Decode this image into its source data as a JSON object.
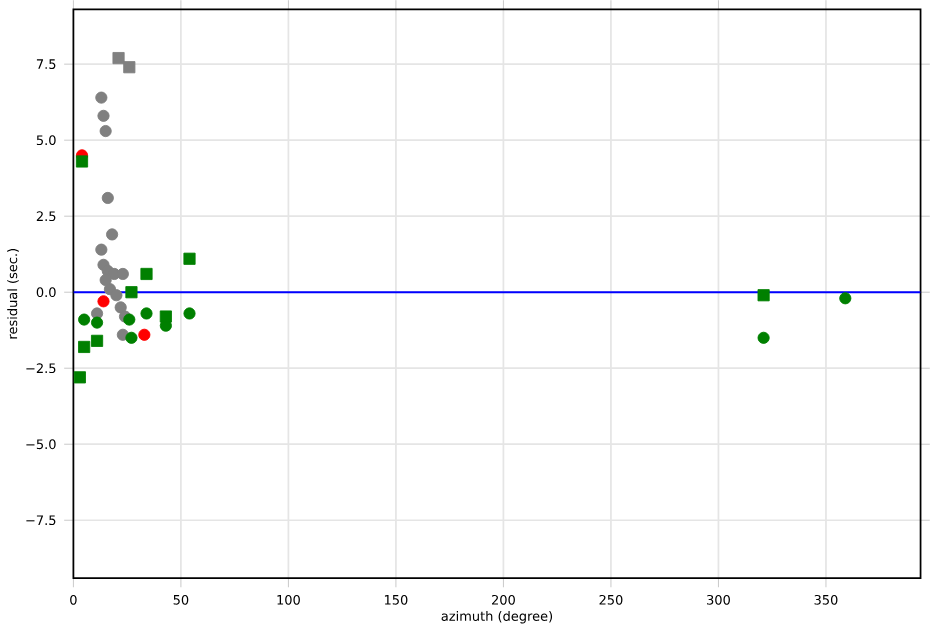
{
  "chart_data": {
    "type": "scatter",
    "xlabel": "azimuth (degree)",
    "ylabel": "residual (sec.)",
    "xlim": [
      0,
      394
    ],
    "ylim": [
      -9.4,
      9.3
    ],
    "xticks": [
      0,
      50,
      100,
      150,
      200,
      250,
      300,
      350
    ],
    "yticks": [
      {
        "value": -7.5,
        "label": "−7.5"
      },
      {
        "value": -5,
        "label": "−5.0"
      },
      {
        "value": -2.5,
        "label": "−2.5"
      },
      {
        "value": 0,
        "label": "0.0"
      },
      {
        "value": 2.5,
        "label": "2.5"
      },
      {
        "value": 5,
        "label": "5.0"
      },
      {
        "value": 7.5,
        "label": "7.5"
      }
    ],
    "grid": true,
    "ref_lines": [
      {
        "axis": "y",
        "value": 0,
        "color": "#0000ff",
        "line_style": "solid"
      }
    ],
    "series": [
      {
        "color": "#808080",
        "marker": "circle",
        "x": [
          13,
          14,
          15,
          16,
          18,
          13,
          14,
          16,
          19,
          23,
          15,
          17,
          20,
          22,
          24,
          11,
          23
        ],
        "values": [
          6.4,
          5.8,
          5.3,
          3.1,
          1.9,
          1.4,
          0.9,
          0.7,
          0.6,
          0.6,
          0.4,
          0.1,
          -0.1,
          -0.5,
          -0.8,
          -0.7,
          -1.4
        ]
      },
      {
        "color": "#808080",
        "marker": "square",
        "x": [
          21,
          26
        ],
        "values": [
          7.7,
          7.4
        ]
      },
      {
        "color": "#ff0000",
        "marker": "circle",
        "x": [
          4,
          33,
          14
        ],
        "values": [
          4.5,
          -1.4,
          -0.3
        ]
      },
      {
        "color": "#008000",
        "marker": "circle",
        "x": [
          5,
          11,
          26,
          34,
          43,
          54,
          27,
          321,
          359
        ],
        "values": [
          -0.9,
          -1.0,
          -0.9,
          -0.7,
          -1.1,
          -0.7,
          -1.5,
          -1.5,
          -0.2
        ]
      },
      {
        "color": "#008000",
        "marker": "square",
        "x": [
          4,
          3,
          5,
          11,
          34,
          54,
          27,
          43,
          321
        ],
        "values": [
          4.3,
          -2.8,
          -1.8,
          -1.6,
          0.6,
          1.1,
          0,
          -0.8,
          -0.1
        ]
      }
    ]
  }
}
